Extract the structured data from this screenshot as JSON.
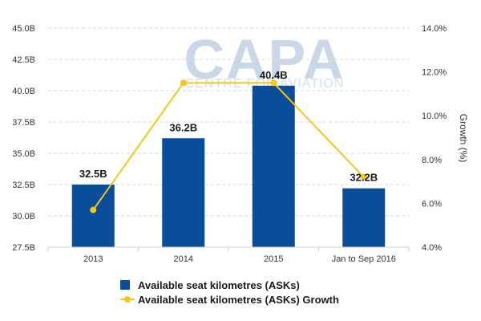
{
  "chart_data": {
    "type": "bar",
    "categories": [
      "2013",
      "2014",
      "2015",
      "Jan to Sep 2016"
    ],
    "series": [
      {
        "name": "Available seat kilometres (ASKs)",
        "type": "bar",
        "axis": "left",
        "values": [
          32.5,
          36.2,
          40.4,
          32.2
        ],
        "labels": [
          "32.5B",
          "36.2B",
          "40.4B",
          "32.2B"
        ],
        "color": "#0a4d9a"
      },
      {
        "name": "Available seat kilometres (ASKs) Growth",
        "type": "line",
        "axis": "right",
        "values": [
          5.7,
          11.5,
          11.5,
          7.2
        ],
        "color": "#f5c518"
      }
    ],
    "y_left": {
      "ylim": [
        27.5,
        45.0
      ],
      "ticks": [
        "27.5B",
        "30.0B",
        "32.5B",
        "35.0B",
        "37.5B",
        "40.0B",
        "42.5B",
        "45.0B"
      ]
    },
    "y_right": {
      "label": "Growth (%)",
      "ylim": [
        4.0,
        14.0
      ],
      "ticks": [
        "4.0%",
        "6.0%",
        "8.0%",
        "10.0%",
        "12.0%",
        "14.0%"
      ]
    },
    "grid": "horizontal dashed",
    "legend_position": "bottom",
    "watermark": {
      "main": "CAPA",
      "sub": "CENTRE FOR AVIATION"
    }
  }
}
